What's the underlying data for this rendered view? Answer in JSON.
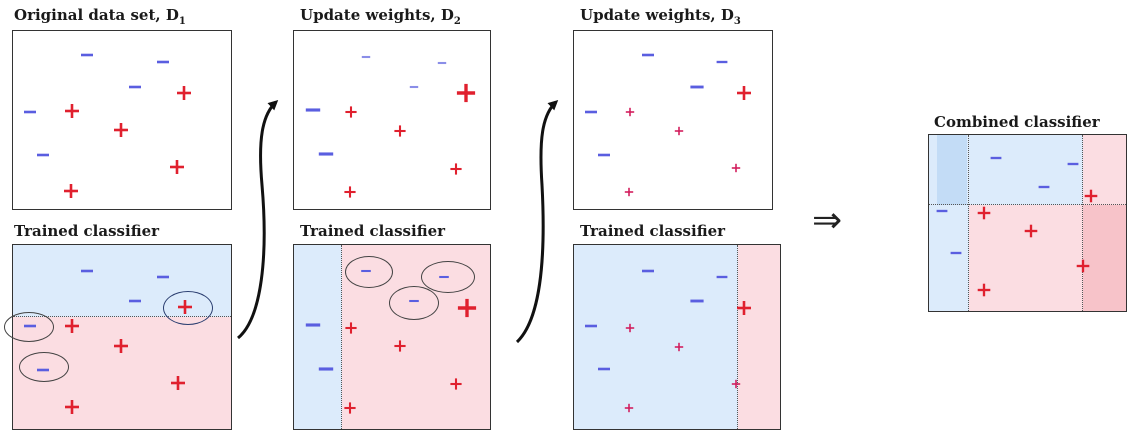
{
  "titles": {
    "d1": "Original data set,",
    "d1_sym": "D",
    "d1_sub": "1",
    "d2": "Update weights,",
    "d2_sym": "D",
    "d2_sub": "2",
    "d3": "Update weights,",
    "d3_sym": "D",
    "d3_sub": "3",
    "trained1": "Trained classifier",
    "trained2": "Trained classifier",
    "trained3": "Trained classifier",
    "combined": "Combined classifier"
  },
  "implies_symbol": "⇒",
  "colors": {
    "plus": "#e0202e",
    "plus_small": "#d21a5a",
    "minus": "#5a5ee0",
    "minus_light": "#8a8ee8",
    "blue_region": "#dcebfb",
    "pink_region": "#fbdde2"
  }
}
